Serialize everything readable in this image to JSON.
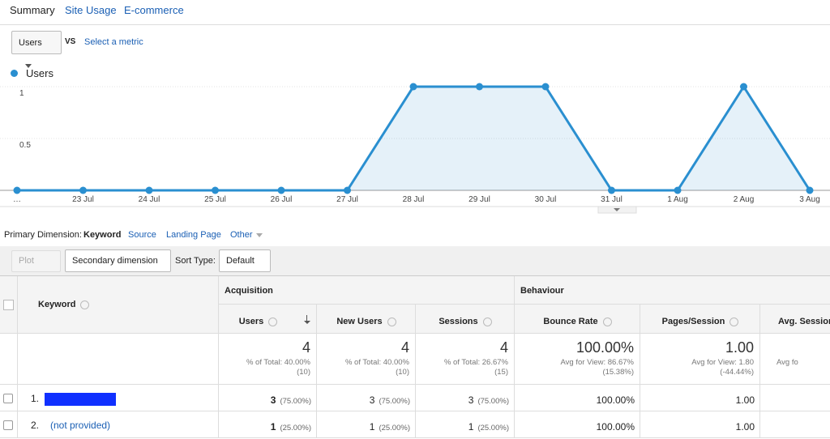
{
  "tabs": [
    "Summary",
    "Site Usage",
    "E-commerce"
  ],
  "metric": "Users",
  "vs": "VS",
  "select_metric": "Select a metric",
  "chart_data": {
    "type": "line",
    "categories": [
      "…",
      "23 Jul",
      "24 Jul",
      "25 Jul",
      "26 Jul",
      "27 Jul",
      "28 Jul",
      "29 Jul",
      "30 Jul",
      "31 Jul",
      "1 Aug",
      "2 Aug",
      "3 Aug"
    ],
    "series": [
      {
        "name": "Users",
        "color": "#2a8fd0",
        "values": [
          0,
          0,
          0,
          0,
          0,
          0,
          1,
          1,
          1,
          0,
          0,
          1,
          0
        ]
      }
    ],
    "ylim": [
      0,
      1
    ],
    "yticks": [
      0.5,
      1
    ],
    "grid": true
  },
  "dimension": {
    "label": "Primary Dimension:",
    "active": "Keyword",
    "options": [
      "Source",
      "Landing Page",
      "Other"
    ]
  },
  "toolbar": {
    "plot_rows": "Plot Rows",
    "secondary": "Secondary dimension",
    "sort_label": "Sort Type:",
    "sort": "Default"
  },
  "table": {
    "groups": [
      "Acquisition",
      "Behaviour"
    ],
    "key_column": "Keyword",
    "columns": [
      "Users",
      "New Users",
      "Sessions",
      "Bounce Rate",
      "Pages/Session",
      "Avg. Session"
    ],
    "totals": [
      {
        "value": "4",
        "sub": "% of Total: 40.00%",
        "base": "(10)"
      },
      {
        "value": "4",
        "sub": "% of Total: 40.00%",
        "base": "(10)"
      },
      {
        "value": "4",
        "sub": "% of Total: 26.67%",
        "base": "(15)"
      },
      {
        "value": "100.00%",
        "sub": "Avg for View: 86.67%",
        "base": "(15.38%)"
      },
      {
        "value": "1.00",
        "sub": "Avg for View: 1.80",
        "base": "(-44.44%)"
      },
      {
        "sub": "Avg fo"
      }
    ],
    "rows": [
      {
        "index": "1.",
        "cells": [
          {
            "value": "3",
            "pct": "(75.00%)"
          },
          {
            "value": "3",
            "pct": "(75.00%)"
          },
          {
            "value": "3",
            "pct": "(75.00%)"
          },
          {
            "value": "100.00%"
          },
          {
            "value": "1.00"
          }
        ]
      },
      {
        "index": "2.",
        "keyword": "(not provided)",
        "cells": [
          {
            "value": "1",
            "pct": "(25.00%)"
          },
          {
            "value": "1",
            "pct": "(25.00%)"
          },
          {
            "value": "1",
            "pct": "(25.00%)"
          },
          {
            "value": "100.00%"
          },
          {
            "value": "1.00"
          }
        ]
      }
    ]
  }
}
